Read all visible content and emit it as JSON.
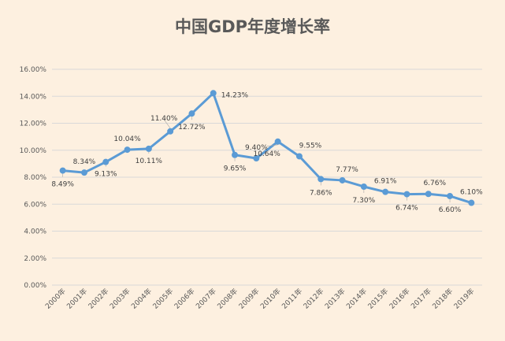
{
  "chart_data": {
    "type": "line",
    "title": "中国GDP年度增长率",
    "categories": [
      "2000年",
      "2001年",
      "2002年",
      "2003年",
      "2004年",
      "2005年",
      "2006年",
      "2007年",
      "2008年",
      "2009年",
      "2010年",
      "2011年",
      "2012年",
      "2013年",
      "2014年",
      "2015年",
      "2016年",
      "2017年",
      "2018年",
      "2019年"
    ],
    "values": [
      8.49,
      8.34,
      9.13,
      10.04,
      10.11,
      11.4,
      12.72,
      14.23,
      9.65,
      9.4,
      10.64,
      9.55,
      7.86,
      7.77,
      7.3,
      6.91,
      6.74,
      6.76,
      6.6,
      6.1
    ],
    "value_labels": [
      "8.49%",
      "8.34%",
      "9.13%",
      "10.04%",
      "10.11%",
      "11.40%",
      "12.72%",
      "14.23%",
      "9.65%",
      "9.40%",
      "10.64%",
      "9.55%",
      "7.86%",
      "7.77%",
      "7.30%",
      "6.91%",
      "6.74%",
      "6.76%",
      "6.60%",
      "6.10%"
    ],
    "ylim": [
      0,
      16
    ],
    "yticks": [
      "0.00%",
      "2.00%",
      "4.00%",
      "6.00%",
      "8.00%",
      "10.00%",
      "12.00%",
      "14.00%",
      "16.00%"
    ],
    "grid": true,
    "line_color": "#5b9bd5",
    "background_color": "#fdf0e0"
  }
}
